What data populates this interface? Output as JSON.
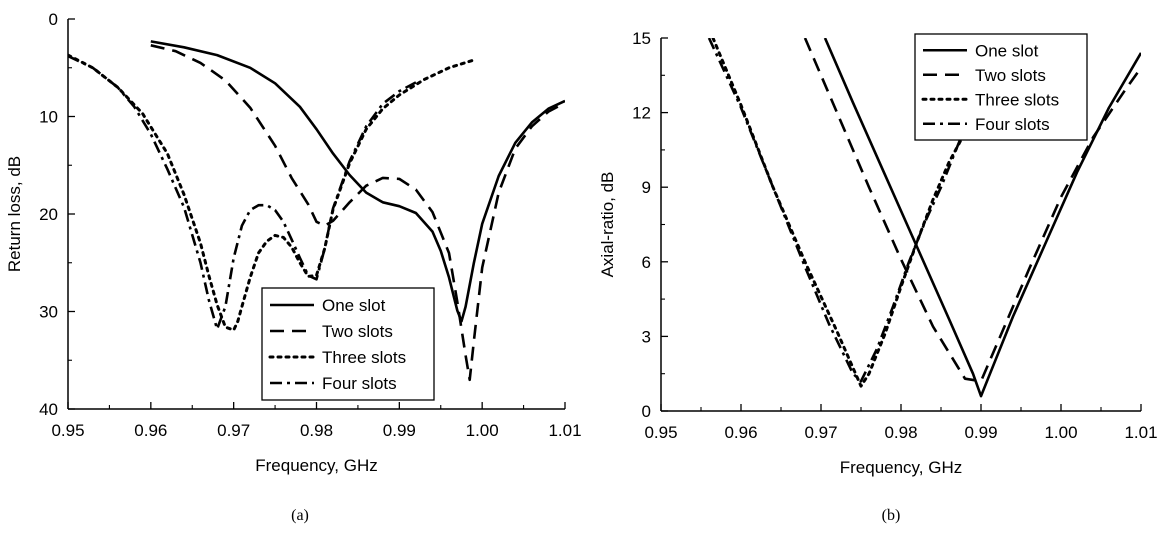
{
  "chart_data": [
    {
      "id": "panel-a",
      "type": "line",
      "caption": "(a)",
      "title": "",
      "xlabel": "Frequency, GHz",
      "ylabel": "Return loss, dB",
      "xlim": [
        0.95,
        1.01
      ],
      "ylim": [
        0,
        40
      ],
      "y_inverted": true,
      "x_ticks": [
        0.95,
        0.96,
        0.97,
        0.98,
        0.99,
        1.0,
        1.01
      ],
      "x_tick_labels": [
        "0.95",
        "0.96",
        "0.97",
        "0.98",
        "0.99",
        "1.00",
        "1.01"
      ],
      "y_ticks": [
        0,
        10,
        20,
        30,
        40
      ],
      "y_tick_labels": [
        "0",
        "10",
        "20",
        "30",
        "40"
      ],
      "grid": false,
      "legend_position": "bottom-right",
      "series": [
        {
          "name": "One slot",
          "dash": "solid",
          "x": [
            0.96,
            0.964,
            0.968,
            0.972,
            0.975,
            0.978,
            0.98,
            0.982,
            0.984,
            0.986,
            0.988,
            0.99,
            0.992,
            0.994,
            0.995,
            0.996,
            0.997,
            0.9975,
            0.998,
            0.999,
            1.0,
            1.002,
            1.004,
            1.006,
            1.008,
            1.01
          ],
          "y": [
            2.3,
            2.9,
            3.7,
            5.0,
            6.6,
            9.0,
            11.3,
            13.8,
            16.0,
            17.8,
            18.8,
            19.2,
            19.9,
            21.8,
            23.8,
            26.5,
            29.9,
            31.0,
            29.5,
            25.0,
            21.0,
            16.1,
            12.7,
            10.6,
            9.2,
            8.4
          ]
        },
        {
          "name": "Two slots",
          "dash": "long-dash",
          "x": [
            0.96,
            0.963,
            0.966,
            0.969,
            0.972,
            0.975,
            0.977,
            0.979,
            0.98,
            0.981,
            0.982,
            0.984,
            0.986,
            0.988,
            0.99,
            0.992,
            0.994,
            0.996,
            0.997,
            0.998,
            0.9985,
            0.999,
            1.0,
            1.002,
            1.004,
            1.006,
            1.008,
            1.01
          ],
          "y": [
            2.7,
            3.3,
            4.5,
            6.3,
            9.1,
            13.0,
            16.3,
            19.0,
            20.8,
            21.2,
            20.7,
            18.8,
            17.1,
            16.3,
            16.4,
            17.5,
            19.8,
            24.0,
            29.0,
            34.5,
            37.0,
            33.0,
            25.5,
            17.8,
            13.3,
            11.0,
            9.5,
            8.6
          ]
        },
        {
          "name": "Three slots",
          "dash": "dot",
          "x": [
            0.95,
            0.953,
            0.956,
            0.959,
            0.962,
            0.964,
            0.966,
            0.967,
            0.968,
            0.969,
            0.97,
            0.9705,
            0.971,
            0.972,
            0.973,
            0.974,
            0.975,
            0.976,
            0.977,
            0.978,
            0.979,
            0.98,
            0.981,
            0.982,
            0.984,
            0.986,
            0.988,
            0.99,
            0.993,
            0.996,
            0.999
          ],
          "y": [
            3.7,
            5.0,
            7.0,
            9.7,
            13.8,
            18.0,
            23.0,
            26.3,
            29.3,
            31.6,
            31.9,
            31.0,
            29.5,
            26.5,
            24.0,
            22.8,
            22.2,
            22.4,
            23.4,
            25.0,
            26.4,
            26.3,
            23.5,
            19.5,
            14.8,
            11.3,
            9.2,
            7.8,
            6.2,
            5.0,
            4.2
          ]
        },
        {
          "name": "Four slots",
          "dash": "dash-dot",
          "x": [
            0.95,
            0.953,
            0.956,
            0.958,
            0.96,
            0.962,
            0.964,
            0.966,
            0.967,
            0.968,
            0.969,
            0.97,
            0.971,
            0.972,
            0.973,
            0.974,
            0.975,
            0.976,
            0.977,
            0.978,
            0.979,
            0.98,
            0.981,
            0.982,
            0.984,
            0.986,
            0.988,
            0.99,
            0.992
          ],
          "y": [
            3.8,
            5.0,
            7.0,
            9.0,
            11.8,
            15.4,
            19.3,
            25.0,
            28.8,
            31.8,
            29.5,
            24.5,
            21.2,
            19.6,
            19.1,
            19.1,
            19.6,
            20.8,
            22.6,
            24.5,
            26.3,
            26.7,
            23.5,
            19.4,
            14.6,
            11.0,
            8.7,
            7.4,
            6.5
          ]
        }
      ]
    },
    {
      "id": "panel-b",
      "type": "line",
      "caption": "(b)",
      "title": "",
      "xlabel": "Frequency, GHz",
      "ylabel": "Axial-ratio, dB",
      "xlim": [
        0.95,
        1.01
      ],
      "ylim": [
        0,
        15
      ],
      "y_inverted": false,
      "x_ticks": [
        0.95,
        0.96,
        0.97,
        0.98,
        0.99,
        1.0,
        1.01
      ],
      "x_tick_labels": [
        "0.95",
        "0.96",
        "0.97",
        "0.98",
        "0.99",
        "1.00",
        "1.01"
      ],
      "y_ticks": [
        0,
        3,
        6,
        9,
        12,
        15
      ],
      "y_tick_labels": [
        "0",
        "3",
        "6",
        "9",
        "12",
        "15"
      ],
      "grid": false,
      "legend_position": "top-right",
      "series": [
        {
          "name": "One slot",
          "dash": "solid",
          "x": [
            0.9705,
            0.974,
            0.978,
            0.982,
            0.986,
            0.989,
            0.99,
            0.991,
            0.994,
            0.998,
            1.002,
            1.006,
            1.01
          ],
          "y": [
            15.0,
            12.4,
            9.5,
            6.6,
            3.7,
            1.5,
            0.6,
            1.4,
            3.8,
            6.7,
            9.6,
            12.2,
            14.4
          ]
        },
        {
          "name": "Two slots",
          "dash": "long-dash",
          "x": [
            0.968,
            0.972,
            0.976,
            0.98,
            0.984,
            0.988,
            0.99,
            0.992,
            0.996,
            1.0,
            1.004,
            1.008,
            1.01
          ],
          "y": [
            15.0,
            12.0,
            9.0,
            6.1,
            3.4,
            1.3,
            1.2,
            2.7,
            5.7,
            8.6,
            11.0,
            12.9,
            13.8
          ]
        },
        {
          "name": "Three slots",
          "dash": "dot",
          "x": [
            0.9565,
            0.96,
            0.964,
            0.968,
            0.972,
            0.975,
            0.976,
            0.978,
            0.98,
            0.982,
            0.984,
            0.986,
            0.988
          ],
          "y": [
            15.0,
            12.3,
            9.0,
            6.0,
            3.2,
            1.0,
            1.5,
            3.1,
            5.0,
            6.8,
            8.5,
            10.0,
            11.2
          ]
        },
        {
          "name": "Four slots",
          "dash": "dash-dot",
          "x": [
            0.956,
            0.96,
            0.964,
            0.968,
            0.971,
            0.974,
            0.975,
            0.977,
            0.979,
            0.981,
            0.983,
            0.985,
            0.987,
            0.989
          ],
          "y": [
            15.0,
            12.2,
            9.0,
            5.8,
            3.5,
            1.5,
            1.2,
            2.5,
            4.2,
            6.0,
            7.6,
            9.0,
            10.6,
            12.2
          ]
        }
      ]
    }
  ]
}
